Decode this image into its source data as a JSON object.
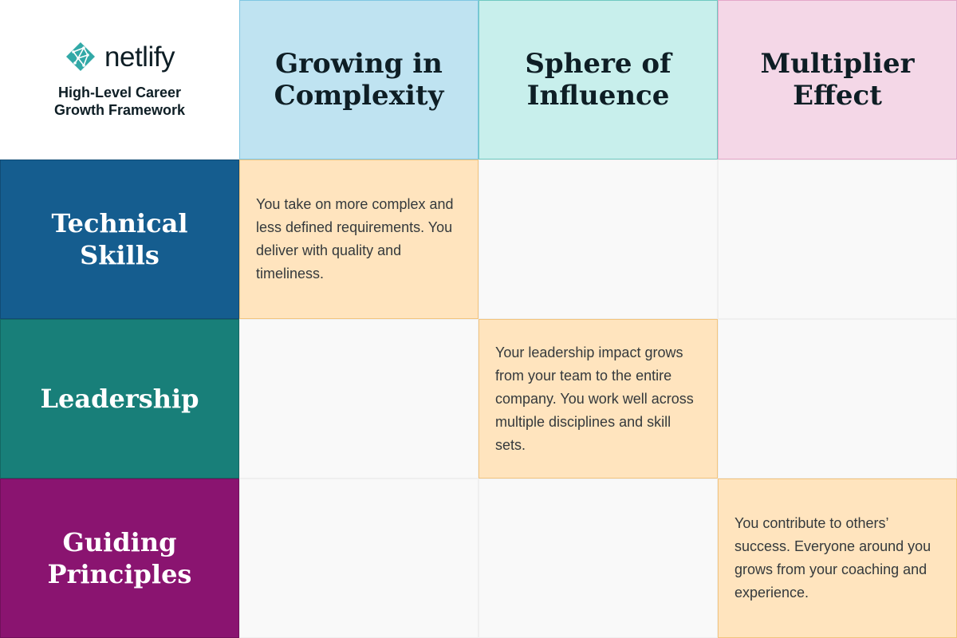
{
  "brand": {
    "logo_text": "netlify",
    "subtitle": "High-Level Career Growth Framework"
  },
  "columns": [
    {
      "label": "Growing in Complexity"
    },
    {
      "label": "Sphere of Influence"
    },
    {
      "label": "Multiplier Effect"
    }
  ],
  "rows": [
    {
      "label": "Technical Skills"
    },
    {
      "label": "Leadership"
    },
    {
      "label": "Guiding Principles"
    }
  ],
  "cells": {
    "technical_complexity": "You take on more complex and less defined requirements. You deliver with quality and timeliness.",
    "leadership_influence": "Your leadership impact grows from your team to the entire company. You work well across multiple disciplines and skill sets.",
    "principles_multiplier": "You contribute to others’ success. Everyone around you grows from your coaching and experience."
  },
  "colors": {
    "complexity_header": "#bfe3f1",
    "influence_header": "#c8efec",
    "multiplier_header": "#f4d7e7",
    "technical_row": "#155d8f",
    "leadership_row": "#187f79",
    "principles_row": "#8a1470",
    "highlight_cell": "#ffe4be",
    "logo_teal": "#32a9a7"
  },
  "icons": {
    "logo": "netlify-logo-icon"
  }
}
